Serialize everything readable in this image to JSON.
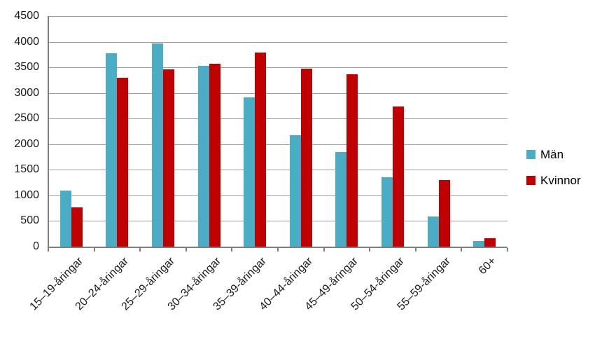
{
  "chart_data": {
    "type": "bar",
    "categories": [
      "15–19-åringar",
      "20–24-åringar",
      "25–29-åringar",
      "30–34-åringar",
      "35–39-åringar",
      "40–44-åringar",
      "45–49-åringar",
      "50–54-åringar",
      "55–59-åringar",
      "60+"
    ],
    "series": [
      {
        "name": "Män",
        "color": "#4BACC6",
        "values": [
          1090,
          3780,
          3960,
          3530,
          2920,
          2170,
          1840,
          1350,
          590,
          110
        ]
      },
      {
        "name": "Kvinnor",
        "color": "#C00000",
        "values": [
          760,
          3290,
          3460,
          3570,
          3790,
          3480,
          3360,
          2740,
          1300,
          160
        ]
      }
    ],
    "title": "",
    "xlabel": "",
    "ylabel": "",
    "ylim": [
      0,
      4500
    ],
    "ytick_step": 500,
    "grid": true,
    "legend_position": "right"
  },
  "colors": {
    "background": "#FFFFFF",
    "gridline": "#9D9D9D",
    "axis": "#7F7F7F",
    "text": "#1A1A1A"
  }
}
